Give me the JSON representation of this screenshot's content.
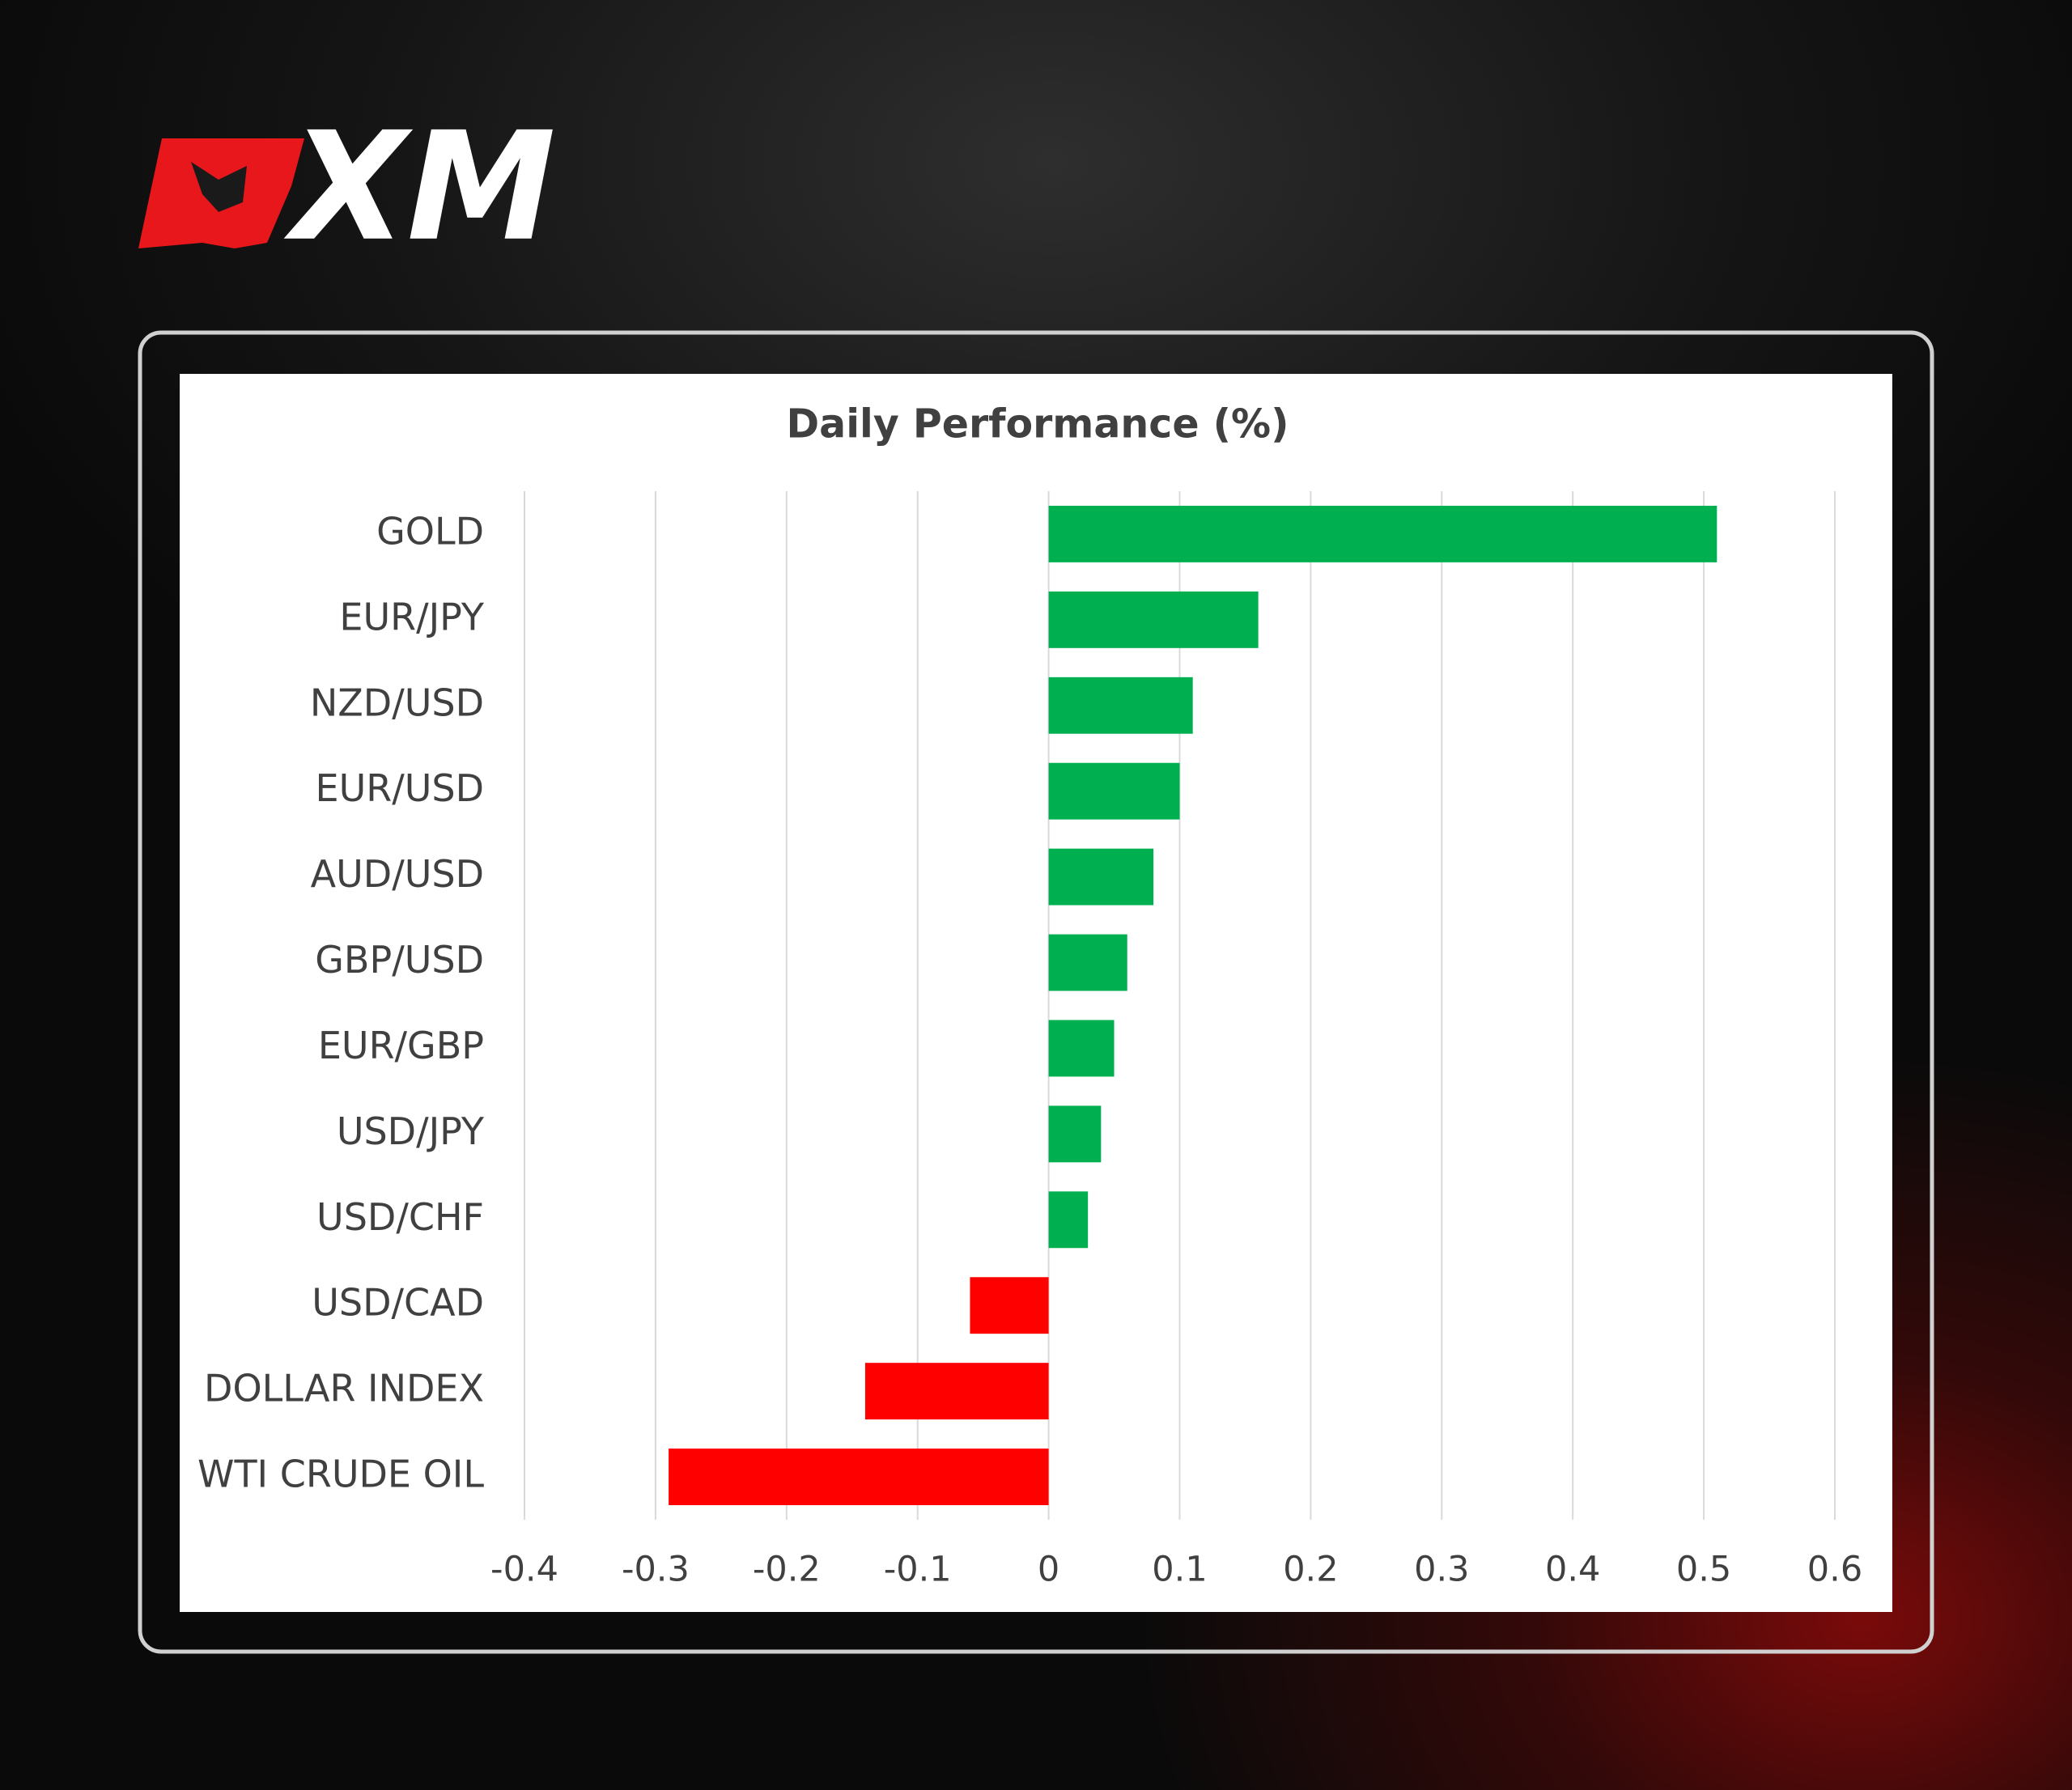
{
  "logo": "XM",
  "chart_data": {
    "type": "hbar",
    "title": "Daily Performance (%)",
    "categories": [
      "GOLD",
      "EUR/JPY",
      "NZD/USD",
      "EUR/USD",
      "AUD/USD",
      "GBP/USD",
      "EUR/GBP",
      "USD/JPY",
      "USD/CHF",
      "USD/CAD",
      "DOLLAR INDEX",
      "WTI CRUDE OIL"
    ],
    "values": [
      0.51,
      0.16,
      0.11,
      0.1,
      0.08,
      0.06,
      0.05,
      0.04,
      0.03,
      -0.06,
      -0.14,
      -0.29
    ],
    "colors": [
      "#00b050",
      "#00b050",
      "#00b050",
      "#00b050",
      "#00b050",
      "#00b050",
      "#00b050",
      "#00b050",
      "#00b050",
      "#ff0000",
      "#ff0000",
      "#ff0000"
    ],
    "xlim": [
      -0.4,
      0.6
    ],
    "xticks": [
      -0.4,
      -0.3,
      -0.2,
      -0.1,
      0,
      0.1,
      0.2,
      0.3,
      0.4,
      0.5,
      0.6
    ],
    "grid": true
  }
}
